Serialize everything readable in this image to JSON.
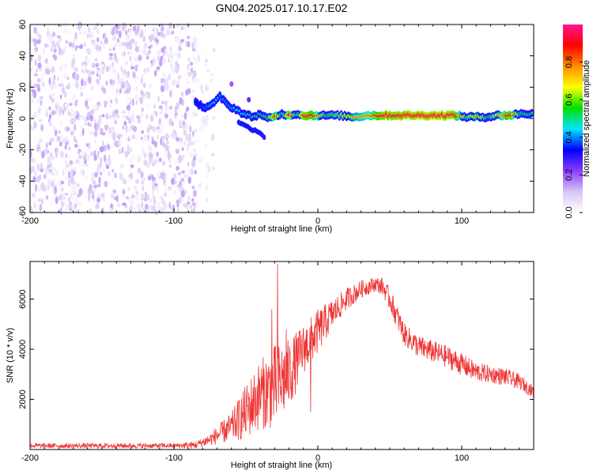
{
  "figure_title": "GN04.2025.017.10.17.E02",
  "chart_data": [
    {
      "type": "heatmap",
      "name": "spectrogram",
      "title": "GN04.2025.017.10.17.E02",
      "xlabel": "Height of straight line (km)",
      "ylabel": "Frequency (Hz)",
      "xlim": [
        -200,
        150
      ],
      "ylim": [
        -60,
        60
      ],
      "xticks": [
        -200,
        -100,
        0,
        100
      ],
      "yticks": [
        -60,
        -40,
        -20,
        0,
        20,
        40,
        60
      ],
      "colorbar": {
        "label": "Normalized spectral amplitude",
        "range": [
          0,
          1
        ],
        "ticks": [
          0.0,
          0.2,
          0.4,
          0.6,
          0.8
        ],
        "colors": [
          "#ffffff",
          "#d7c4f5",
          "#8a3cff",
          "#0000ff",
          "#00e5ff",
          "#00e000",
          "#ffff00",
          "#ff8c00",
          "#ff0000",
          "#ff1493"
        ]
      },
      "noise_region": {
        "x_start": -200,
        "x_end": -85,
        "fade_end": -72,
        "amplitude_range": [
          0.0,
          0.15
        ]
      },
      "signal_track": [
        {
          "x": -85,
          "f": 10,
          "a": 0.32
        },
        {
          "x": -78,
          "f": 7,
          "a": 0.38
        },
        {
          "x": -72,
          "f": 10,
          "a": 0.45
        },
        {
          "x": -68,
          "f": 14,
          "a": 0.4
        },
        {
          "x": -62,
          "f": 8,
          "a": 0.4
        },
        {
          "x": -57,
          "f": 6,
          "a": 0.45
        },
        {
          "x": -52,
          "f": 3,
          "a": 0.45
        },
        {
          "x": -45,
          "f": 1,
          "a": 0.5
        },
        {
          "x": -40,
          "f": 3,
          "a": 0.5
        },
        {
          "x": -35,
          "f": 0,
          "a": 0.55
        },
        {
          "x": -30,
          "f": 1,
          "a": 0.9
        },
        {
          "x": -25,
          "f": 3,
          "a": 0.45
        },
        {
          "x": -20,
          "f": 2,
          "a": 0.95
        },
        {
          "x": -15,
          "f": 3,
          "a": 0.45
        },
        {
          "x": -10,
          "f": 2,
          "a": 0.95
        },
        {
          "x": -3,
          "f": 2,
          "a": 0.9
        },
        {
          "x": 5,
          "f": 2,
          "a": 0.55
        },
        {
          "x": 15,
          "f": 2,
          "a": 0.6
        },
        {
          "x": 25,
          "f": 1,
          "a": 0.75
        },
        {
          "x": 35,
          "f": 2,
          "a": 0.8
        },
        {
          "x": 45,
          "f": 2,
          "a": 0.95
        },
        {
          "x": 55,
          "f": 2,
          "a": 0.95
        },
        {
          "x": 65,
          "f": 2,
          "a": 0.97
        },
        {
          "x": 75,
          "f": 2,
          "a": 0.97
        },
        {
          "x": 85,
          "f": 2,
          "a": 0.97
        },
        {
          "x": 95,
          "f": 2,
          "a": 0.95
        },
        {
          "x": 103,
          "f": 1,
          "a": 0.55
        },
        {
          "x": 110,
          "f": 1,
          "a": 0.75
        },
        {
          "x": 118,
          "f": 1,
          "a": 0.5
        },
        {
          "x": 125,
          "f": 2,
          "a": 0.7
        },
        {
          "x": 133,
          "f": 2,
          "a": 0.95
        },
        {
          "x": 140,
          "f": 3,
          "a": 0.55
        },
        {
          "x": 150,
          "f": 3,
          "a": 0.5
        }
      ],
      "side_branch": [
        {
          "x": -55,
          "f": -2,
          "a": 0.35
        },
        {
          "x": -50,
          "f": -5,
          "a": 0.35
        },
        {
          "x": -45,
          "f": -7,
          "a": 0.3
        },
        {
          "x": -40,
          "f": -9,
          "a": 0.3
        },
        {
          "x": -36,
          "f": -13,
          "a": 0.25
        }
      ],
      "blips": [
        {
          "x": -60,
          "f": 22,
          "a": 0.2
        },
        {
          "x": -48,
          "f": 12,
          "a": 0.25
        }
      ]
    },
    {
      "type": "line",
      "name": "snr",
      "xlabel": "Height of straight line (km)",
      "ylabel": "SNR (10 * v/v)",
      "xlim": [
        -200,
        150
      ],
      "ylim": [
        0,
        7500
      ],
      "xticks": [
        -200,
        -100,
        0,
        100
      ],
      "yticks": [
        2000,
        4000,
        6000
      ],
      "color": "#ee3333",
      "envelope": [
        {
          "x": -200,
          "base": 150,
          "noise": 100
        },
        {
          "x": -100,
          "base": 150,
          "noise": 100
        },
        {
          "x": -85,
          "base": 180,
          "noise": 150
        },
        {
          "x": -75,
          "base": 400,
          "noise": 250
        },
        {
          "x": -60,
          "base": 900,
          "noise": 600
        },
        {
          "x": -50,
          "base": 1500,
          "noise": 1100
        },
        {
          "x": -40,
          "base": 2200,
          "noise": 1400
        },
        {
          "x": -30,
          "base": 2500,
          "noise": 1700
        },
        {
          "x": -20,
          "base": 3000,
          "noise": 1400
        },
        {
          "x": -10,
          "base": 4000,
          "noise": 1000
        },
        {
          "x": 0,
          "base": 4700,
          "noise": 900
        },
        {
          "x": 10,
          "base": 5400,
          "noise": 600
        },
        {
          "x": 20,
          "base": 6000,
          "noise": 450
        },
        {
          "x": 30,
          "base": 6400,
          "noise": 350
        },
        {
          "x": 40,
          "base": 6600,
          "noise": 300
        },
        {
          "x": 45,
          "base": 6500,
          "noise": 350
        },
        {
          "x": 50,
          "base": 6000,
          "noise": 450
        },
        {
          "x": 55,
          "base": 5300,
          "noise": 500
        },
        {
          "x": 60,
          "base": 4600,
          "noise": 450
        },
        {
          "x": 70,
          "base": 4100,
          "noise": 450
        },
        {
          "x": 80,
          "base": 3900,
          "noise": 450
        },
        {
          "x": 90,
          "base": 3700,
          "noise": 450
        },
        {
          "x": 100,
          "base": 3400,
          "noise": 450
        },
        {
          "x": 110,
          "base": 3100,
          "noise": 400
        },
        {
          "x": 120,
          "base": 3000,
          "noise": 350
        },
        {
          "x": 130,
          "base": 2900,
          "noise": 350
        },
        {
          "x": 140,
          "base": 2700,
          "noise": 300
        },
        {
          "x": 150,
          "base": 2300,
          "noise": 250
        }
      ],
      "spikes": [
        {
          "x": -28,
          "y": 7400
        },
        {
          "x": -32,
          "y": 5600
        },
        {
          "x": -5,
          "y": 1500
        },
        {
          "x": -22,
          "y": 4800
        }
      ]
    }
  ]
}
